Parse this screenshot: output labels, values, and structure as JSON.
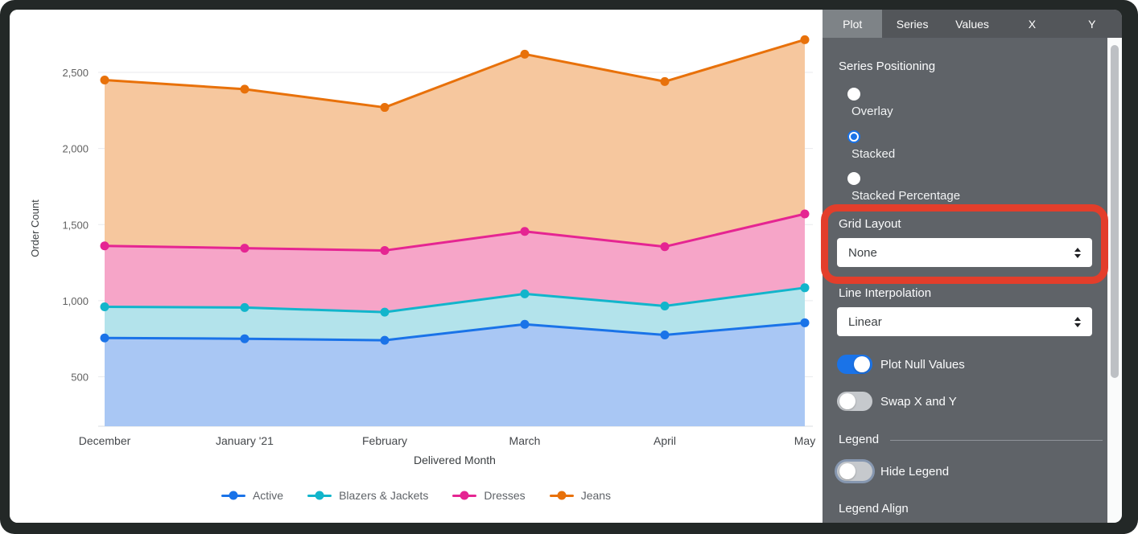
{
  "chart_data": {
    "type": "area",
    "stacked": true,
    "title": "",
    "categories": [
      "December",
      "January '21",
      "February",
      "March",
      "April",
      "May"
    ],
    "series": [
      {
        "name": "Active",
        "color": "#1A73E8",
        "fill": "#A9C7F4",
        "values": [
          755,
          750,
          740,
          845,
          775,
          855
        ]
      },
      {
        "name": "Blazers & Jackets",
        "color": "#12B5CB",
        "fill": "#B3E3EB",
        "values": [
          205,
          205,
          185,
          200,
          190,
          230
        ]
      },
      {
        "name": "Dresses",
        "color": "#E52592",
        "fill": "#F6A5C8",
        "values": [
          400,
          390,
          405,
          410,
          390,
          485
        ]
      },
      {
        "name": "Jeans",
        "color": "#E8710A",
        "fill": "#F6C79E",
        "values": [
          1090,
          1045,
          940,
          1165,
          1085,
          1145
        ]
      }
    ],
    "xlabel": "Delivered Month",
    "ylabel": "Order Count",
    "y_ticks": [
      500,
      1000,
      1500,
      2000,
      2500
    ],
    "ylim": [
      175,
      2775
    ],
    "grid": "horizontal",
    "legend_position": "bottom"
  },
  "panel": {
    "tabs": [
      {
        "label": "Plot",
        "active": true
      },
      {
        "label": "Series",
        "active": false
      },
      {
        "label": "Values",
        "active": false
      },
      {
        "label": "X",
        "active": false
      },
      {
        "label": "Y",
        "active": false
      }
    ],
    "series_positioning": {
      "label": "Series Positioning",
      "options": [
        {
          "label": "Overlay",
          "selected": false
        },
        {
          "label": "Stacked",
          "selected": true
        },
        {
          "label": "Stacked Percentage",
          "selected": false
        }
      ]
    },
    "grid_layout": {
      "label": "Grid Layout",
      "value": "None"
    },
    "line_interpolation": {
      "label": "Line Interpolation",
      "value": "Linear"
    },
    "plot_null_values": {
      "label": "Plot Null Values",
      "on": true
    },
    "swap_x_and_y": {
      "label": "Swap X and Y",
      "on": false
    },
    "legend_section": {
      "label": "Legend"
    },
    "hide_legend": {
      "label": "Hide Legend",
      "on": false
    },
    "legend_align": {
      "label": "Legend Align"
    }
  },
  "colors": {
    "accent_blue": "#1A73E8",
    "panel_bg": "#5F6368",
    "tab_bar_bg": "#53565A",
    "tab_active_bg": "#7E8387",
    "annotation_red": "#E33E2B",
    "gridline": "#E8EAED",
    "axis_text": "#616161"
  }
}
